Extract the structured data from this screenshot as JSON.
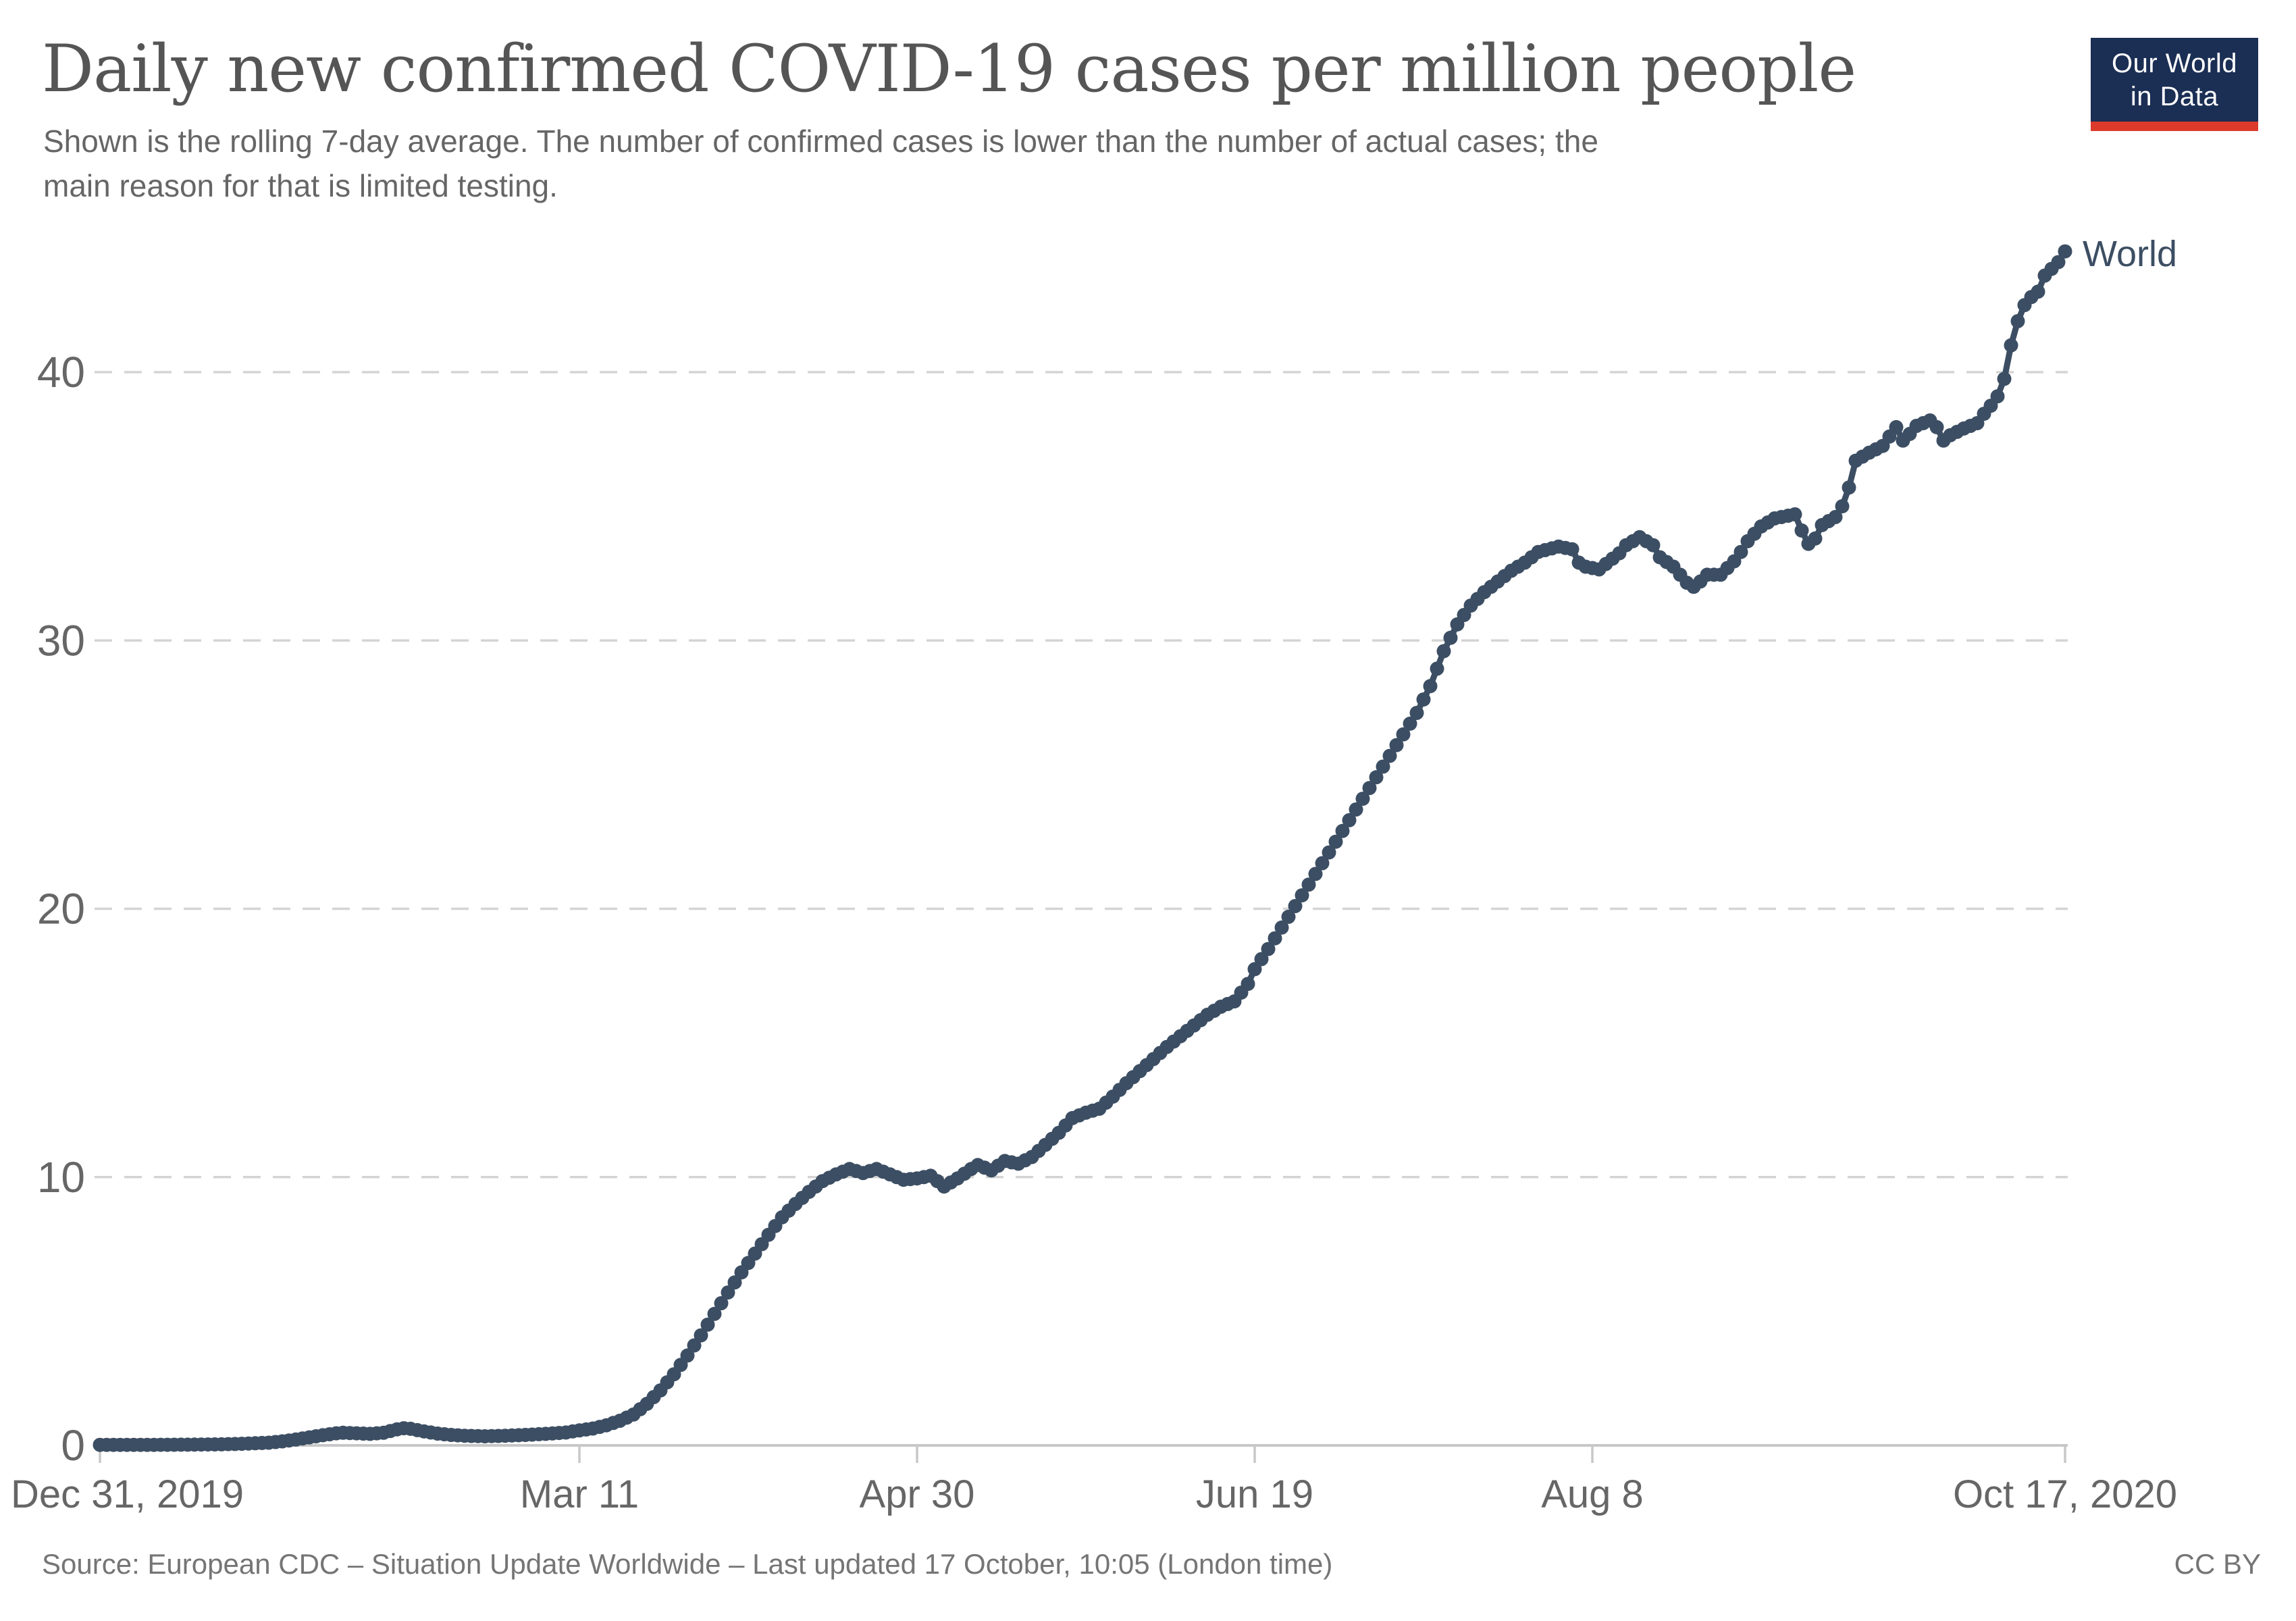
{
  "header": {
    "title": "Daily new confirmed COVID-19 cases per million people",
    "subtitle_line1": "Shown is the rolling 7-day average. The number of confirmed cases is lower than the number of actual cases; the",
    "subtitle_line2": "main reason for that is limited testing.",
    "logo": {
      "line1": "Our World",
      "line2": "in Data",
      "bg_color": "#1b2e54",
      "accent_color": "#dc3a2b",
      "text_color": "#ffffff"
    }
  },
  "footer": {
    "source": "Source: European CDC – Situation Update Worldwide – Last updated 17 October, 10:05 (London time)",
    "license": "CC BY"
  },
  "chart_data": {
    "type": "line",
    "title": "Daily new confirmed COVID-19 cases per million people",
    "xlabel": "",
    "ylabel": "",
    "ylim": [
      0,
      45
    ],
    "grid": "horizontal-dashed",
    "legend_position": "end-of-line-label",
    "series_label": "World",
    "line_color": "#3C4E63",
    "start_date": "2019-12-31",
    "end_date": "2020-10-17",
    "x_ticks": [
      {
        "day": 0,
        "label": "Dec 31, 2019"
      },
      {
        "day": 71,
        "label": "Mar 11"
      },
      {
        "day": 121,
        "label": "Apr 30"
      },
      {
        "day": 171,
        "label": "Jun 19"
      },
      {
        "day": 221,
        "label": "Aug 8"
      },
      {
        "day": 291,
        "label": "Oct 17, 2020"
      }
    ],
    "y_ticks": [
      {
        "value": 0,
        "label": "0"
      },
      {
        "value": 10,
        "label": "10"
      },
      {
        "value": 20,
        "label": "20"
      },
      {
        "value": 30,
        "label": "30"
      },
      {
        "value": 40,
        "label": "40"
      }
    ],
    "series": [
      {
        "name": "World",
        "color": "#3C4E63",
        "anchors": [
          [
            0,
            0.02
          ],
          [
            8,
            0.02
          ],
          [
            14,
            0.03
          ],
          [
            18,
            0.04
          ],
          [
            21,
            0.06
          ],
          [
            23,
            0.08
          ],
          [
            25,
            0.1
          ],
          [
            27,
            0.15
          ],
          [
            29,
            0.22
          ],
          [
            31,
            0.3
          ],
          [
            33,
            0.38
          ],
          [
            35,
            0.45
          ],
          [
            36,
            0.47
          ],
          [
            38,
            0.45
          ],
          [
            40,
            0.43
          ],
          [
            42,
            0.47
          ],
          [
            44,
            0.6
          ],
          [
            45,
            0.64
          ],
          [
            46,
            0.62
          ],
          [
            48,
            0.52
          ],
          [
            50,
            0.44
          ],
          [
            52,
            0.39
          ],
          [
            54,
            0.36
          ],
          [
            57,
            0.34
          ],
          [
            60,
            0.36
          ],
          [
            63,
            0.39
          ],
          [
            66,
            0.43
          ],
          [
            69,
            0.48
          ],
          [
            71,
            0.56
          ],
          [
            73,
            0.63
          ],
          [
            75,
            0.75
          ],
          [
            77,
            0.92
          ],
          [
            79,
            1.15
          ],
          [
            81,
            1.55
          ],
          [
            83,
            2.05
          ],
          [
            85,
            2.65
          ],
          [
            87,
            3.35
          ],
          [
            89,
            4.1
          ],
          [
            91,
            4.9
          ],
          [
            93,
            5.7
          ],
          [
            95,
            6.45
          ],
          [
            97,
            7.15
          ],
          [
            99,
            7.85
          ],
          [
            101,
            8.5
          ],
          [
            103,
            9.0
          ],
          [
            105,
            9.45
          ],
          [
            107,
            9.85
          ],
          [
            109,
            10.1
          ],
          [
            111,
            10.3
          ],
          [
            113,
            10.15
          ],
          [
            115,
            10.3
          ],
          [
            117,
            10.1
          ],
          [
            119,
            9.9
          ],
          [
            121,
            9.95
          ],
          [
            123,
            10.05
          ],
          [
            125,
            9.65
          ],
          [
            127,
            9.95
          ],
          [
            129,
            10.3
          ],
          [
            130,
            10.45
          ],
          [
            132,
            10.25
          ],
          [
            134,
            10.6
          ],
          [
            136,
            10.5
          ],
          [
            138,
            10.75
          ],
          [
            140,
            11.2
          ],
          [
            142,
            11.65
          ],
          [
            144,
            12.2
          ],
          [
            146,
            12.4
          ],
          [
            148,
            12.55
          ],
          [
            150,
            13.0
          ],
          [
            152,
            13.5
          ],
          [
            154,
            13.95
          ],
          [
            156,
            14.4
          ],
          [
            158,
            14.85
          ],
          [
            160,
            15.25
          ],
          [
            162,
            15.65
          ],
          [
            164,
            16.05
          ],
          [
            166,
            16.35
          ],
          [
            168,
            16.55
          ],
          [
            170,
            17.2
          ],
          [
            171,
            17.75
          ],
          [
            173,
            18.5
          ],
          [
            175,
            19.3
          ],
          [
            177,
            20.1
          ],
          [
            179,
            20.9
          ],
          [
            181,
            21.7
          ],
          [
            183,
            22.5
          ],
          [
            185,
            23.3
          ],
          [
            187,
            24.1
          ],
          [
            189,
            24.9
          ],
          [
            191,
            25.7
          ],
          [
            193,
            26.5
          ],
          [
            195,
            27.3
          ],
          [
            197,
            28.3
          ],
          [
            199,
            29.6
          ],
          [
            201,
            30.6
          ],
          [
            203,
            31.3
          ],
          [
            205,
            31.8
          ],
          [
            207,
            32.2
          ],
          [
            209,
            32.6
          ],
          [
            211,
            32.9
          ],
          [
            213,
            33.3
          ],
          [
            216,
            33.5
          ],
          [
            218,
            33.4
          ],
          [
            219,
            32.9
          ],
          [
            220,
            32.75
          ],
          [
            222,
            32.65
          ],
          [
            223,
            32.85
          ],
          [
            225,
            33.25
          ],
          [
            226,
            33.55
          ],
          [
            228,
            33.85
          ],
          [
            230,
            33.55
          ],
          [
            231,
            33.1
          ],
          [
            233,
            32.75
          ],
          [
            235,
            32.15
          ],
          [
            236,
            32.0
          ],
          [
            237,
            32.2
          ],
          [
            238,
            32.45
          ],
          [
            240,
            32.45
          ],
          [
            241,
            32.7
          ],
          [
            242,
            32.95
          ],
          [
            243,
            33.3
          ],
          [
            244,
            33.7
          ],
          [
            246,
            34.25
          ],
          [
            248,
            34.55
          ],
          [
            251,
            34.7
          ],
          [
            252,
            34.1
          ],
          [
            253,
            33.6
          ],
          [
            254,
            33.8
          ],
          [
            255,
            34.3
          ],
          [
            257,
            34.6
          ],
          [
            258,
            35.0
          ],
          [
            259,
            35.7
          ],
          [
            260,
            36.7
          ],
          [
            262,
            37.0
          ],
          [
            264,
            37.25
          ],
          [
            265,
            37.6
          ],
          [
            266,
            37.95
          ],
          [
            267,
            37.45
          ],
          [
            268,
            37.7
          ],
          [
            269,
            38.0
          ],
          [
            271,
            38.2
          ],
          [
            272,
            37.95
          ],
          [
            273,
            37.45
          ],
          [
            274,
            37.65
          ],
          [
            276,
            37.9
          ],
          [
            278,
            38.1
          ],
          [
            279,
            38.45
          ],
          [
            280,
            38.75
          ],
          [
            281,
            39.1
          ],
          [
            282,
            39.75
          ],
          [
            283,
            41.0
          ],
          [
            284,
            41.9
          ],
          [
            285,
            42.5
          ],
          [
            286,
            42.8
          ],
          [
            287,
            43.0
          ],
          [
            288,
            43.6
          ],
          [
            289,
            43.85
          ],
          [
            290,
            44.1
          ],
          [
            291,
            44.5
          ]
        ]
      }
    ]
  },
  "colors": {
    "title": "#555555",
    "subtitle": "#666666",
    "tick_label": "#666666",
    "gridline": "#d4d4d4",
    "axis_line": "#c8c8c8",
    "source": "#757575"
  }
}
